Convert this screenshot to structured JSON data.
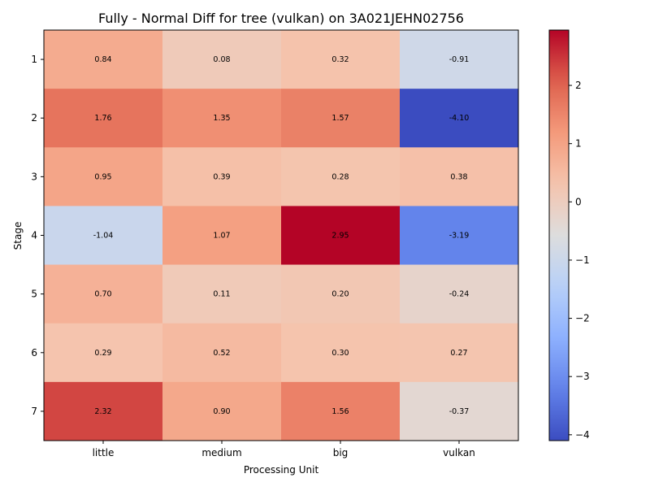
{
  "chart_data": {
    "type": "heatmap",
    "title": "Fully - Normal Diff for tree (vulkan) on 3A021JEHN02756",
    "xlabel": "Processing Unit",
    "ylabel": "Stage",
    "x_categories": [
      "little",
      "medium",
      "big",
      "vulkan"
    ],
    "y_categories": [
      "1",
      "2",
      "3",
      "4",
      "5",
      "6",
      "7"
    ],
    "values": [
      [
        0.84,
        0.08,
        0.32,
        -0.91
      ],
      [
        1.76,
        1.35,
        1.57,
        -4.1
      ],
      [
        0.95,
        0.39,
        0.28,
        0.38
      ],
      [
        -1.04,
        1.07,
        2.95,
        -3.19
      ],
      [
        0.7,
        0.11,
        0.2,
        -0.24
      ],
      [
        0.29,
        0.52,
        0.3,
        0.27
      ],
      [
        2.32,
        0.9,
        1.56,
        -0.37
      ]
    ],
    "value_labels": [
      [
        "0.84",
        "0.08",
        "0.32",
        "-0.91"
      ],
      [
        "1.76",
        "1.35",
        "1.57",
        "-4.10"
      ],
      [
        "0.95",
        "0.39",
        "0.28",
        "0.38"
      ],
      [
        "-1.04",
        "1.07",
        "2.95",
        "-3.19"
      ],
      [
        "0.70",
        "0.11",
        "0.20",
        "-0.24"
      ],
      [
        "0.29",
        "0.52",
        "0.30",
        "0.27"
      ],
      [
        "2.32",
        "0.90",
        "1.56",
        "-0.37"
      ]
    ],
    "colormap": "coolwarm",
    "colorbar": {
      "range": [
        -4.1,
        2.95
      ],
      "ticks": [
        2,
        1,
        0,
        -1,
        -2,
        -3,
        -4
      ],
      "tick_labels": [
        "2",
        "1",
        "0",
        "−1",
        "−2",
        "−3",
        "−4"
      ]
    }
  }
}
